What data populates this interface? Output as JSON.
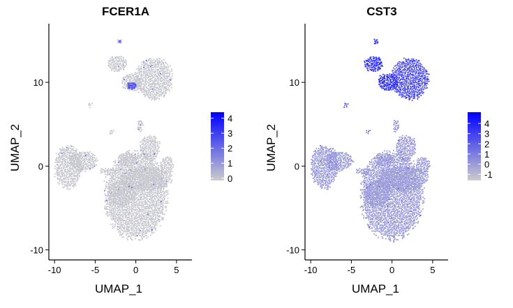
{
  "chart_data": [
    {
      "type": "scatter",
      "title": "FCER1A",
      "xlabel": "UMAP_1",
      "ylabel": "UMAP_2",
      "xticks": [
        -10,
        -5,
        0,
        5
      ],
      "yticks": [
        -10,
        0,
        10
      ],
      "xlim": [
        -10.7,
        6.9
      ],
      "ylim": [
        -11.2,
        17
      ],
      "legend": {
        "position": "right",
        "ticks": [
          4,
          3,
          2,
          1,
          0
        ],
        "range": [
          -0.15,
          4.4
        ],
        "colors": [
          "#cccccc",
          "#0000ff"
        ]
      },
      "clusters": [
        {
          "x": 0.0,
          "y": -3.5,
          "rx": 4.0,
          "ry": 5.5,
          "level": 0
        },
        {
          "x": -1.8,
          "y": -3.3,
          "rx": 1.8,
          "ry": 1.6,
          "level": 0
        },
        {
          "x": 1.3,
          "y": -1.5,
          "rx": 3.3,
          "ry": 1.5,
          "level": 0
        },
        {
          "x": 1.7,
          "y": 2.2,
          "rx": 1.3,
          "ry": 1.6,
          "level": 0
        },
        {
          "x": -8.3,
          "y": -0.1,
          "rx": 1.8,
          "ry": 2.7,
          "level": 0
        },
        {
          "x": -6.5,
          "y": 0.6,
          "rx": 1.8,
          "ry": 1.2,
          "level": 0
        },
        {
          "x": -3.5,
          "y": -0.6,
          "rx": 1.0,
          "ry": 0.4,
          "level": 0
        },
        {
          "x": -1.0,
          "y": 0.8,
          "rx": 1.3,
          "ry": 0.8,
          "level": 0
        },
        {
          "x": 3.8,
          "y": 0.1,
          "rx": 0.9,
          "ry": 1.1,
          "level": 0
        },
        {
          "x": 0.5,
          "y": 4.8,
          "rx": 0.4,
          "ry": 0.8,
          "level": 0
        },
        {
          "x": -2.3,
          "y": 12.2,
          "rx": 1.2,
          "ry": 1.0,
          "level": 0
        },
        {
          "x": 2.2,
          "y": 10.4,
          "rx": 2.4,
          "ry": 2.6,
          "level": 0
        },
        {
          "x": -0.5,
          "y": 10.0,
          "rx": 1.3,
          "ry": 1.1,
          "level": 0
        },
        {
          "x": -2.0,
          "y": 14.9,
          "rx": 0.35,
          "ry": 0.35,
          "level": 0
        },
        {
          "x": -5.7,
          "y": 7.3,
          "rx": 0.3,
          "ry": 0.3,
          "level": 0
        },
        {
          "x": -3.0,
          "y": 4.1,
          "rx": 0.3,
          "ry": 0.3,
          "level": 0
        }
      ],
      "highlights": [
        {
          "x": -0.5,
          "y": 9.6,
          "rx": 0.6,
          "ry": 0.45,
          "level": 2.5
        },
        {
          "x": -2.0,
          "y": 14.9,
          "rx": 0.2,
          "ry": 0.2,
          "level": 2.0
        }
      ]
    },
    {
      "type": "scatter",
      "title": "CST3",
      "xlabel": "UMAP_1",
      "ylabel": "UMAP_2",
      "xticks": [
        -10,
        -5,
        0,
        5
      ],
      "yticks": [
        -10,
        0,
        10
      ],
      "xlim": [
        -10.7,
        6.9
      ],
      "ylim": [
        -11.2,
        17
      ],
      "legend": {
        "position": "right",
        "ticks": [
          4,
          3,
          2,
          1,
          0,
          -1
        ],
        "range": [
          -1.6,
          5.1
        ],
        "colors": [
          "#cccccc",
          "#0000ff"
        ]
      },
      "clusters": [
        {
          "x": 0.0,
          "y": -3.5,
          "rx": 4.0,
          "ry": 5.5,
          "level": 0.0
        },
        {
          "x": -1.8,
          "y": -3.3,
          "rx": 1.8,
          "ry": 1.6,
          "level": 0.0
        },
        {
          "x": 1.3,
          "y": -1.5,
          "rx": 3.3,
          "ry": 1.5,
          "level": 0.0
        },
        {
          "x": 1.7,
          "y": 2.2,
          "rx": 1.3,
          "ry": 1.6,
          "level": 0.0
        },
        {
          "x": -8.3,
          "y": -0.1,
          "rx": 1.8,
          "ry": 2.7,
          "level": 0.1
        },
        {
          "x": -6.5,
          "y": 0.6,
          "rx": 1.8,
          "ry": 1.2,
          "level": 0.1
        },
        {
          "x": -3.5,
          "y": -0.6,
          "rx": 1.0,
          "ry": 0.4,
          "level": 0.0
        },
        {
          "x": -1.0,
          "y": 0.8,
          "rx": 1.3,
          "ry": 0.8,
          "level": 0.0
        },
        {
          "x": 3.8,
          "y": 0.1,
          "rx": 0.9,
          "ry": 1.1,
          "level": 0.0
        },
        {
          "x": 0.5,
          "y": 4.8,
          "rx": 0.4,
          "ry": 0.8,
          "level": 0.0
        },
        {
          "x": -2.3,
          "y": 12.2,
          "rx": 1.2,
          "ry": 1.0,
          "level": 3.6
        },
        {
          "x": 2.2,
          "y": 10.4,
          "rx": 2.4,
          "ry": 2.6,
          "level": 2.8
        },
        {
          "x": -0.5,
          "y": 10.0,
          "rx": 1.3,
          "ry": 1.1,
          "level": 3.8
        },
        {
          "x": -2.0,
          "y": 14.9,
          "rx": 0.35,
          "ry": 0.35,
          "level": 4.2
        },
        {
          "x": -5.7,
          "y": 7.3,
          "rx": 0.3,
          "ry": 0.3,
          "level": 2.0
        },
        {
          "x": -3.0,
          "y": 4.1,
          "rx": 0.3,
          "ry": 0.3,
          "level": 1.0
        }
      ],
      "highlights": []
    }
  ]
}
